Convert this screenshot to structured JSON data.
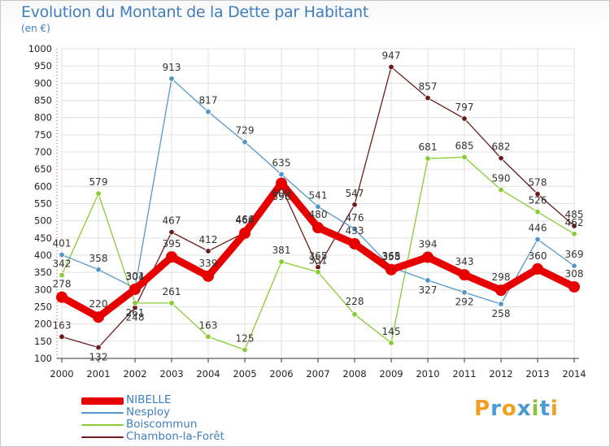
{
  "colors": {
    "title": "#3f7fbf",
    "nibelle": "#e60000",
    "nesploy": "#5596c8",
    "boiscommun": "#88cc33",
    "chambon": "#6b1b1b",
    "grid": "#e0e0e0"
  },
  "brand": {
    "text": "Proxiti",
    "letters": [
      {
        "ch": "P",
        "color": "#f0a020"
      },
      {
        "ch": "r",
        "color": "#4a9ad4"
      },
      {
        "ch": "o",
        "color": "#f0a020"
      },
      {
        "ch": "x",
        "color": "#4a9ad4"
      },
      {
        "ch": "i",
        "color": "#90c040"
      },
      {
        "ch": "t",
        "color": "#4a9ad4"
      },
      {
        "ch": "i",
        "color": "#f0a020"
      }
    ]
  },
  "chart_data": {
    "type": "line",
    "title": "Evolution du Montant de la Dette par Habitant",
    "subtitle": "(en €)",
    "xlabel": "",
    "ylabel": "",
    "x": [
      "2000",
      "2001",
      "2002",
      "2003",
      "2004",
      "2005",
      "2006",
      "2007",
      "2008",
      "2009",
      "2010",
      "2011",
      "2012",
      "2013",
      "2014"
    ],
    "ylim": [
      100,
      1000
    ],
    "yticks": [
      100,
      150,
      200,
      250,
      300,
      350,
      400,
      450,
      500,
      550,
      600,
      650,
      700,
      750,
      800,
      850,
      900,
      950,
      1000
    ],
    "grid": true,
    "legend_position": "bottom-left",
    "series": [
      {
        "name": "NIBELLE",
        "key": "nibelle",
        "values": [
          278,
          220,
          301,
          395,
          339,
          464,
          609,
          480,
          433,
          358,
          394,
          343,
          298,
          360,
          308
        ]
      },
      {
        "name": "Nesploy",
        "key": "nesploy",
        "values": [
          401,
          358,
          304,
          913,
          817,
          729,
          635,
          541,
          476,
          365,
          327,
          292,
          258,
          446,
          369
        ]
      },
      {
        "name": "Boiscommun",
        "key": "boiscommun",
        "values": [
          342,
          579,
          261,
          261,
          163,
          125,
          381,
          351,
          228,
          145,
          681,
          685,
          590,
          526,
          462
        ]
      },
      {
        "name": "Chambon-la-Forêt",
        "key": "chambon",
        "values": [
          163,
          132,
          248,
          467,
          412,
          466,
          598,
          365,
          547,
          947,
          857,
          797,
          682,
          578,
          485
        ]
      }
    ]
  }
}
